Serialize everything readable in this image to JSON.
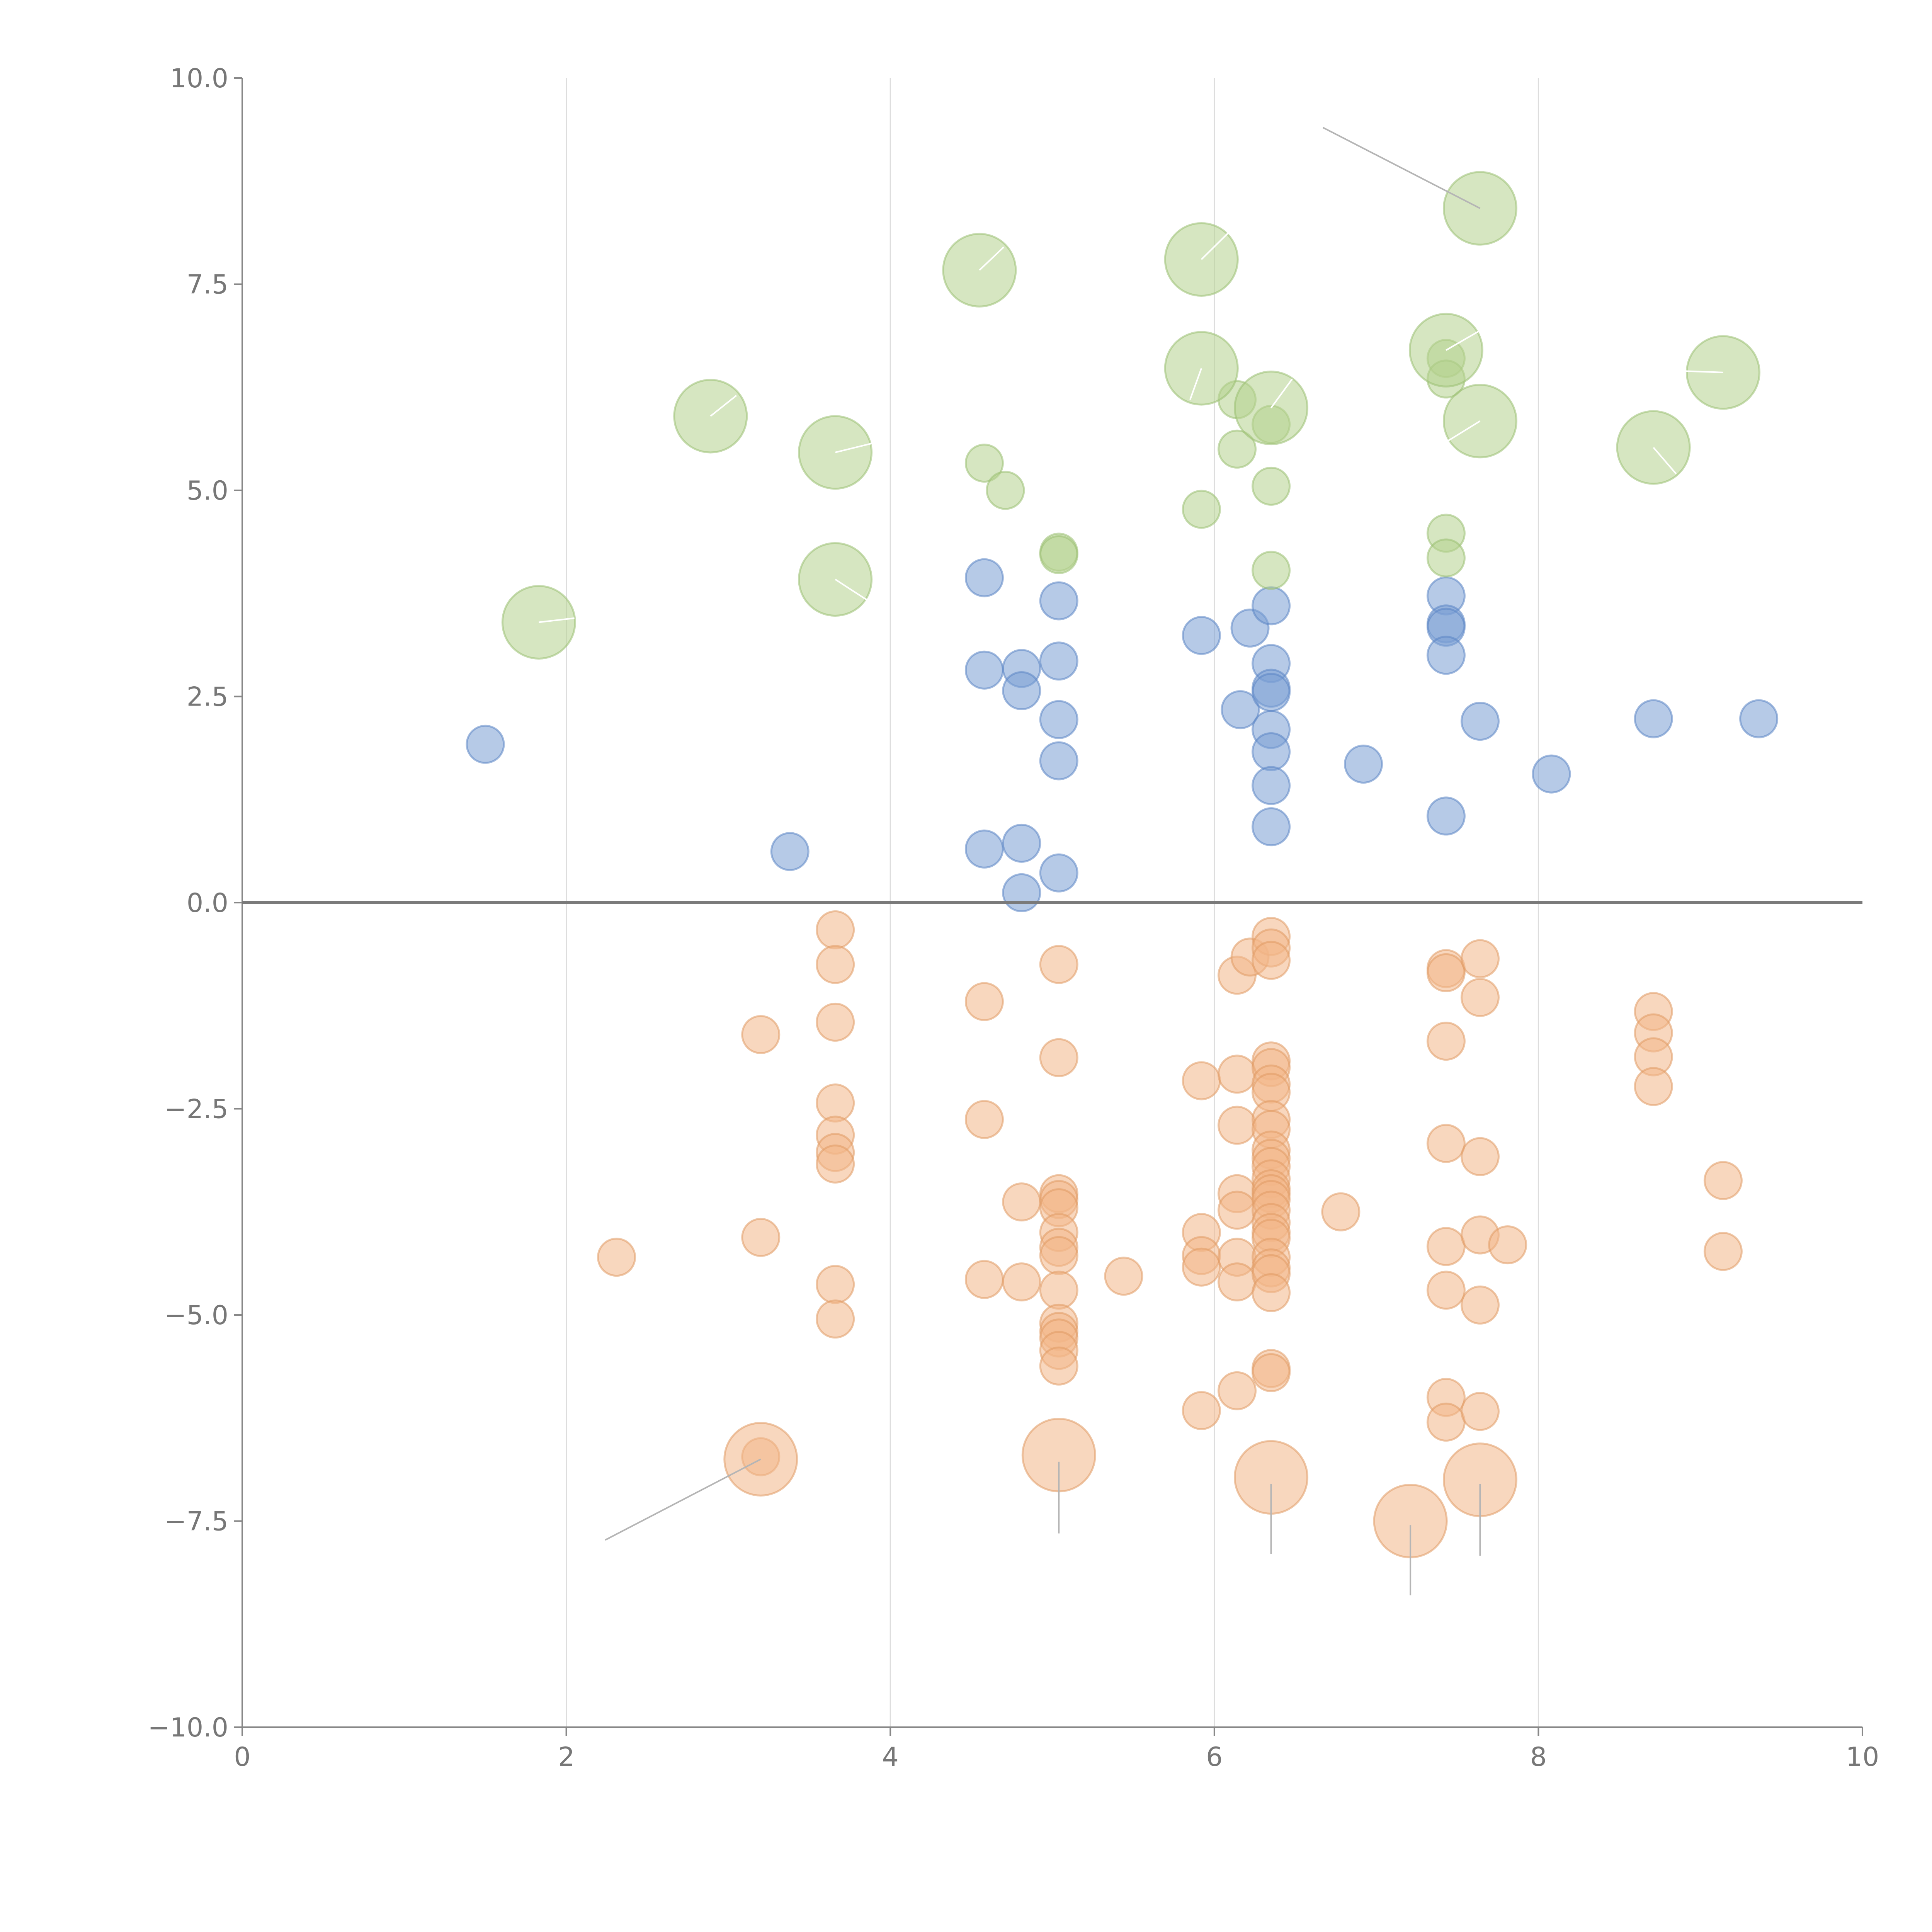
{
  "chart_data": {
    "type": "scatter",
    "title": "",
    "xlabel": "",
    "ylabel": "",
    "xlim": [
      0,
      10
    ],
    "ylim": [
      -10,
      10
    ],
    "x_ticks": [
      0,
      2,
      4,
      6,
      8,
      10
    ],
    "x_tick_labels": [
      "0",
      "2",
      "4",
      "6",
      "8",
      "10"
    ],
    "y_ticks": [
      10,
      7.5,
      5,
      2.5,
      0,
      -2.5,
      -5,
      -7.5,
      -10
    ],
    "y_tick_labels": [
      "10.0",
      "7.5",
      "5.0",
      "2.5",
      "0.0",
      "−2.5",
      "−5.0",
      "−7.5",
      "−10.0"
    ],
    "grid": "vertical",
    "zero_line": true,
    "series": [
      {
        "name": "blue",
        "color": "#7a9fd4",
        "stroke": "#5b85c4",
        "size": 1,
        "points": [
          [
            1.5,
            1.92
          ],
          [
            3.38,
            0.62
          ],
          [
            4.58,
            3.94
          ],
          [
            4.58,
            2.82
          ],
          [
            4.58,
            0.65
          ],
          [
            4.81,
            2.84
          ],
          [
            4.81,
            2.57
          ],
          [
            4.81,
            0.72
          ],
          [
            4.81,
            0.12
          ],
          [
            5.04,
            3.66
          ],
          [
            5.04,
            2.93
          ],
          [
            5.04,
            2.22
          ],
          [
            5.04,
            1.72
          ],
          [
            5.04,
            0.36
          ],
          [
            5.92,
            3.24
          ],
          [
            6.16,
            2.34
          ],
          [
            6.22,
            3.33
          ],
          [
            6.35,
            3.6
          ],
          [
            6.35,
            2.9
          ],
          [
            6.35,
            2.6
          ],
          [
            6.35,
            2.55
          ],
          [
            6.35,
            2.1
          ],
          [
            6.35,
            1.83
          ],
          [
            6.35,
            1.42
          ],
          [
            6.35,
            0.92
          ],
          [
            6.92,
            1.68
          ],
          [
            7.43,
            3.72
          ],
          [
            7.43,
            3.38
          ],
          [
            7.43,
            3.34
          ],
          [
            7.43,
            3.0
          ],
          [
            7.43,
            1.05
          ],
          [
            7.64,
            2.2
          ],
          [
            8.08,
            1.56
          ],
          [
            8.71,
            2.23
          ],
          [
            9.36,
            2.23
          ]
        ]
      },
      {
        "name": "green",
        "color": "#b4d18e",
        "stroke": "#9abf72",
        "size": 1,
        "points": [
          [
            4.58,
            5.33
          ],
          [
            4.71,
            5.0
          ],
          [
            5.04,
            4.25
          ],
          [
            5.04,
            4.22
          ],
          [
            5.92,
            4.77
          ],
          [
            6.14,
            6.1
          ],
          [
            6.14,
            5.5
          ],
          [
            6.35,
            5.8
          ],
          [
            6.35,
            5.05
          ],
          [
            6.35,
            4.03
          ],
          [
            7.43,
            6.6
          ],
          [
            7.43,
            6.35
          ],
          [
            7.43,
            4.48
          ],
          [
            7.43,
            4.18
          ]
        ]
      },
      {
        "name": "green-large",
        "color": "#b4d18e",
        "stroke": "#9abf72",
        "size": 2,
        "points": [
          [
            1.83,
            3.4
          ],
          [
            2.89,
            5.9
          ],
          [
            3.66,
            5.46
          ],
          [
            3.66,
            3.92
          ],
          [
            4.55,
            7.67
          ],
          [
            5.92,
            7.8
          ],
          [
            5.92,
            6.48
          ],
          [
            6.35,
            6.0
          ],
          [
            7.43,
            6.7
          ],
          [
            7.64,
            8.42
          ],
          [
            7.64,
            5.84
          ],
          [
            8.71,
            5.52
          ],
          [
            9.14,
            6.43
          ]
        ]
      },
      {
        "name": "orange",
        "color": "#f2b689",
        "stroke": "#e09a65",
        "size": 1,
        "points": [
          [
            2.31,
            -4.3
          ],
          [
            3.2,
            -1.6
          ],
          [
            3.2,
            -4.06
          ],
          [
            3.2,
            -6.72
          ],
          [
            3.66,
            -0.33
          ],
          [
            3.66,
            -0.75
          ],
          [
            3.66,
            -1.45
          ],
          [
            3.66,
            -2.43
          ],
          [
            3.66,
            -2.82
          ],
          [
            3.66,
            -3.03
          ],
          [
            3.66,
            -3.17
          ],
          [
            3.66,
            -4.63
          ],
          [
            3.66,
            -5.05
          ],
          [
            4.58,
            -1.2
          ],
          [
            4.58,
            -2.63
          ],
          [
            4.58,
            -4.57
          ],
          [
            4.81,
            -3.63
          ],
          [
            4.81,
            -4.6
          ],
          [
            5.04,
            -0.75
          ],
          [
            5.04,
            -1.88
          ],
          [
            5.04,
            -3.53
          ],
          [
            5.04,
            -3.6
          ],
          [
            5.04,
            -3.7
          ],
          [
            5.04,
            -4.0
          ],
          [
            5.04,
            -4.18
          ],
          [
            5.04,
            -4.28
          ],
          [
            5.04,
            -4.7
          ],
          [
            5.04,
            -5.1
          ],
          [
            5.04,
            -5.2
          ],
          [
            5.04,
            -5.28
          ],
          [
            5.04,
            -5.43
          ],
          [
            5.04,
            -5.62
          ],
          [
            5.44,
            -4.53
          ],
          [
            5.92,
            -2.16
          ],
          [
            5.92,
            -4.0
          ],
          [
            5.92,
            -4.28
          ],
          [
            5.92,
            -4.42
          ],
          [
            5.92,
            -6.16
          ],
          [
            6.14,
            -0.88
          ],
          [
            6.14,
            -2.08
          ],
          [
            6.14,
            -2.7
          ],
          [
            6.14,
            -3.53
          ],
          [
            6.14,
            -3.73
          ],
          [
            6.14,
            -4.3
          ],
          [
            6.14,
            -4.6
          ],
          [
            6.14,
            -5.92
          ],
          [
            6.22,
            -0.66
          ],
          [
            6.35,
            -0.41
          ],
          [
            6.35,
            -0.55
          ],
          [
            6.35,
            -0.7
          ],
          [
            6.35,
            -1.92
          ],
          [
            6.35,
            -2.0
          ],
          [
            6.35,
            -2.2
          ],
          [
            6.35,
            -2.3
          ],
          [
            6.35,
            -2.63
          ],
          [
            6.35,
            -2.75
          ],
          [
            6.35,
            -3.0
          ],
          [
            6.35,
            -3.1
          ],
          [
            6.35,
            -3.2
          ],
          [
            6.35,
            -3.35
          ],
          [
            6.35,
            -3.47
          ],
          [
            6.35,
            -3.53
          ],
          [
            6.35,
            -3.6
          ],
          [
            6.35,
            -3.73
          ],
          [
            6.35,
            -3.88
          ],
          [
            6.35,
            -4.0
          ],
          [
            6.35,
            -4.07
          ],
          [
            6.35,
            -4.3
          ],
          [
            6.35,
            -4.43
          ],
          [
            6.35,
            -4.5
          ],
          [
            6.35,
            -4.73
          ],
          [
            6.35,
            -5.65
          ],
          [
            6.35,
            -5.7
          ],
          [
            6.78,
            -3.75
          ],
          [
            7.43,
            -0.8
          ],
          [
            7.43,
            -0.85
          ],
          [
            7.43,
            -1.68
          ],
          [
            7.43,
            -2.92
          ],
          [
            7.43,
            -4.17
          ],
          [
            7.43,
            -4.7
          ],
          [
            7.43,
            -6.0
          ],
          [
            7.43,
            -6.3
          ],
          [
            7.64,
            -0.68
          ],
          [
            7.64,
            -1.15
          ],
          [
            7.64,
            -3.08
          ],
          [
            7.64,
            -4.03
          ],
          [
            7.64,
            -4.88
          ],
          [
            7.64,
            -6.17
          ],
          [
            7.81,
            -4.15
          ],
          [
            8.71,
            -1.32
          ],
          [
            8.71,
            -1.58
          ],
          [
            8.71,
            -1.87
          ],
          [
            8.71,
            -2.23
          ],
          [
            9.14,
            -3.37
          ],
          [
            9.14,
            -4.23
          ]
        ]
      },
      {
        "name": "orange-large",
        "color": "#f2b689",
        "stroke": "#e09a65",
        "size": 2,
        "points": [
          [
            3.2,
            -6.75
          ],
          [
            5.04,
            -6.7
          ],
          [
            6.35,
            -6.97
          ],
          [
            7.21,
            -7.5
          ],
          [
            7.64,
            -7.0
          ]
        ]
      }
    ],
    "annotations": [
      {
        "type": "leader",
        "color": "#b5b5b5",
        "from": [
          7.64,
          8.42
        ],
        "to": [
          6.67,
          9.4
        ]
      },
      {
        "type": "leader",
        "color": "#b5b5b5",
        "from": [
          3.2,
          -6.75
        ],
        "to": [
          2.24,
          -7.73
        ]
      },
      {
        "type": "leader",
        "color": "#b5b5b5",
        "from": [
          5.04,
          -6.78
        ],
        "to": [
          5.04,
          -7.65
        ]
      },
      {
        "type": "leader",
        "color": "#b5b5b5",
        "from": [
          6.35,
          -7.05
        ],
        "to": [
          6.35,
          -7.9
        ]
      },
      {
        "type": "leader",
        "color": "#b5b5b5",
        "from": [
          7.21,
          -7.55
        ],
        "to": [
          7.21,
          -8.4
        ]
      },
      {
        "type": "leader",
        "color": "#b5b5b5",
        "from": [
          7.64,
          -7.05
        ],
        "to": [
          7.64,
          -7.92
        ]
      },
      {
        "type": "leader",
        "color": "#ffffff",
        "from": [
          1.83,
          3.4
        ],
        "to": [
          2.05,
          3.45
        ]
      },
      {
        "type": "leader",
        "color": "#ffffff",
        "from": [
          2.89,
          5.9
        ],
        "to": [
          3.05,
          6.15
        ]
      },
      {
        "type": "leader",
        "color": "#ffffff",
        "from": [
          3.66,
          5.46
        ],
        "to": [
          3.95,
          5.6
        ]
      },
      {
        "type": "leader",
        "color": "#ffffff",
        "from": [
          3.66,
          3.92
        ],
        "to": [
          3.95,
          3.55
        ]
      },
      {
        "type": "leader",
        "color": "#ffffff",
        "from": [
          4.55,
          7.67
        ],
        "to": [
          4.7,
          7.95
        ]
      },
      {
        "type": "leader",
        "color": "#ffffff",
        "from": [
          5.92,
          7.8
        ],
        "to": [
          6.1,
          8.15
        ]
      },
      {
        "type": "leader",
        "color": "#ffffff",
        "from": [
          5.92,
          6.48
        ],
        "to": [
          5.85,
          6.1
        ]
      },
      {
        "type": "leader",
        "color": "#ffffff",
        "from": [
          6.35,
          6.0
        ],
        "to": [
          6.48,
          6.35
        ]
      },
      {
        "type": "leader",
        "color": "#ffffff",
        "from": [
          7.43,
          6.7
        ],
        "to": [
          7.65,
          6.95
        ]
      },
      {
        "type": "leader",
        "color": "#ffffff",
        "from": [
          7.64,
          5.84
        ],
        "to": [
          7.4,
          5.55
        ]
      },
      {
        "type": "leader",
        "color": "#ffffff",
        "from": [
          8.71,
          5.52
        ],
        "to": [
          8.85,
          5.2
        ]
      },
      {
        "type": "leader",
        "color": "#ffffff",
        "from": [
          9.14,
          6.43
        ],
        "to": [
          8.85,
          6.45
        ]
      }
    ]
  }
}
